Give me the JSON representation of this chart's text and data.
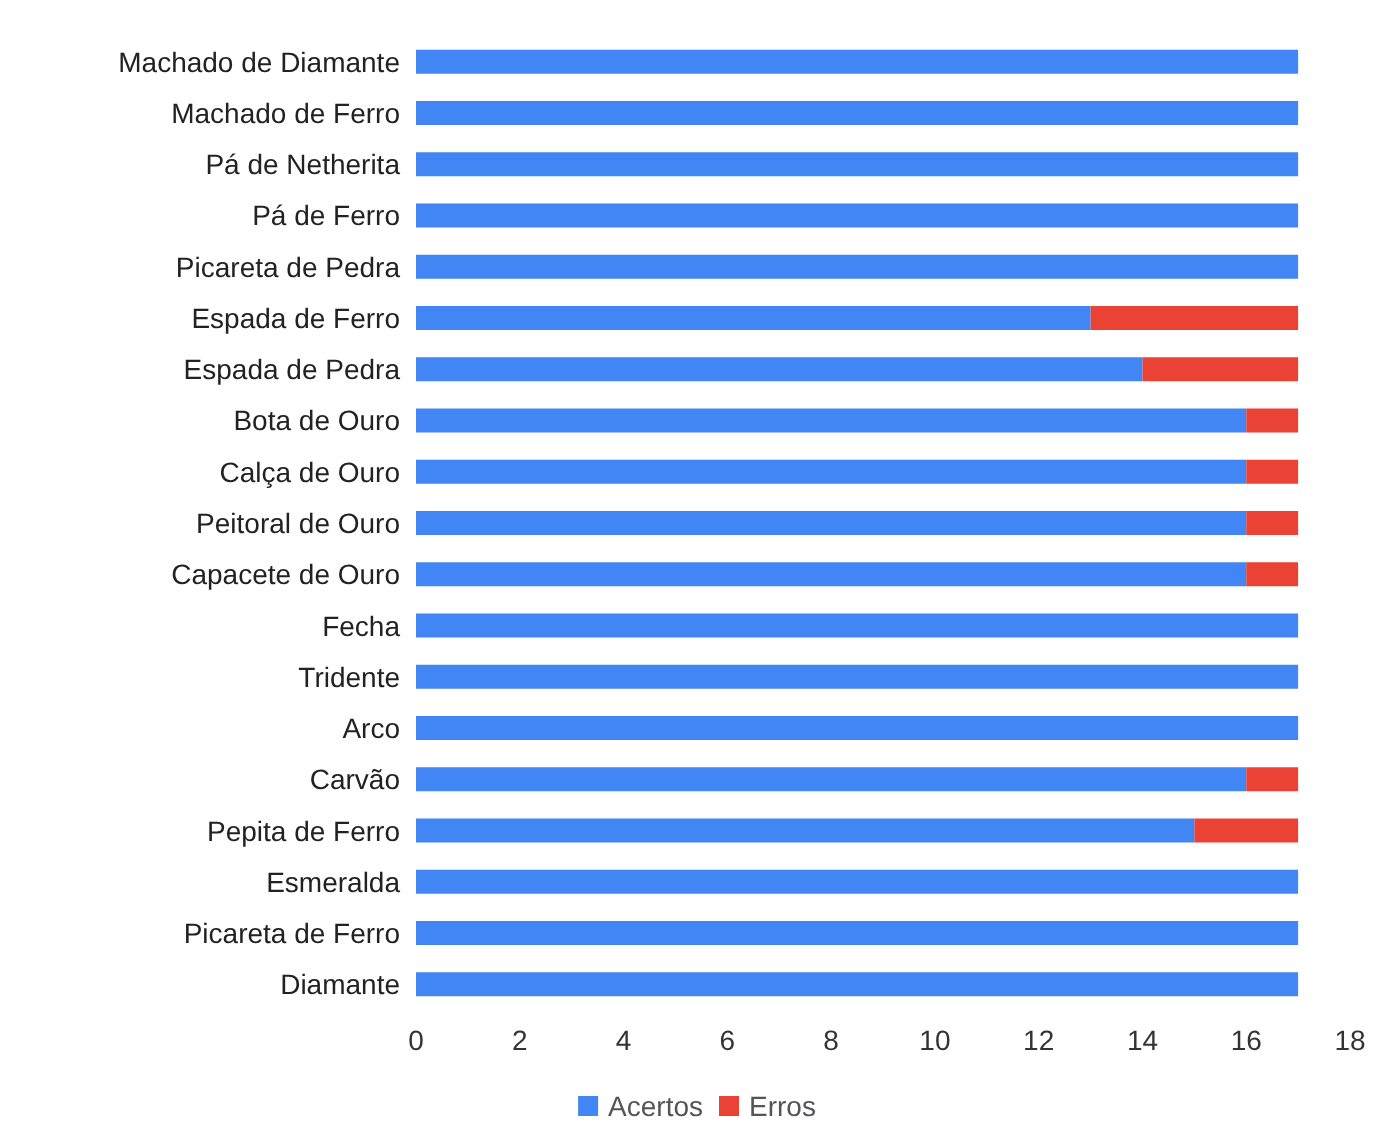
{
  "chart_data": {
    "type": "bar",
    "orientation": "horizontal",
    "stacked": true,
    "categories": [
      "Machado de Diamante",
      "Machado de Ferro",
      "Pá de Netherita",
      "Pá de Ferro",
      "Picareta de Pedra",
      "Espada de Ferro",
      "Espada de Pedra",
      "Bota de Ouro",
      "Calça de Ouro",
      "Peitoral de Ouro",
      "Capacete de Ouro",
      "Fecha",
      "Tridente",
      "Arco",
      "Carvão",
      "Pepita de Ferro",
      "Esmeralda",
      "Picareta de Ferro",
      "Diamante"
    ],
    "series": [
      {
        "name": "Acertos",
        "color": "#4285f4",
        "values": [
          17,
          17,
          17,
          17,
          17,
          13,
          14,
          16,
          16,
          16,
          16,
          17,
          17,
          17,
          16,
          15,
          17,
          17,
          17
        ]
      },
      {
        "name": "Erros",
        "color": "#ea4335",
        "values": [
          0,
          0,
          0,
          0,
          0,
          4,
          3,
          1,
          1,
          1,
          1,
          0,
          0,
          0,
          1,
          2,
          0,
          0,
          0
        ]
      }
    ],
    "xlim": [
      0,
      18
    ],
    "xticks": [
      0,
      2,
      4,
      6,
      8,
      10,
      12,
      14,
      16,
      18
    ],
    "grid": false,
    "legend": "bottom"
  }
}
